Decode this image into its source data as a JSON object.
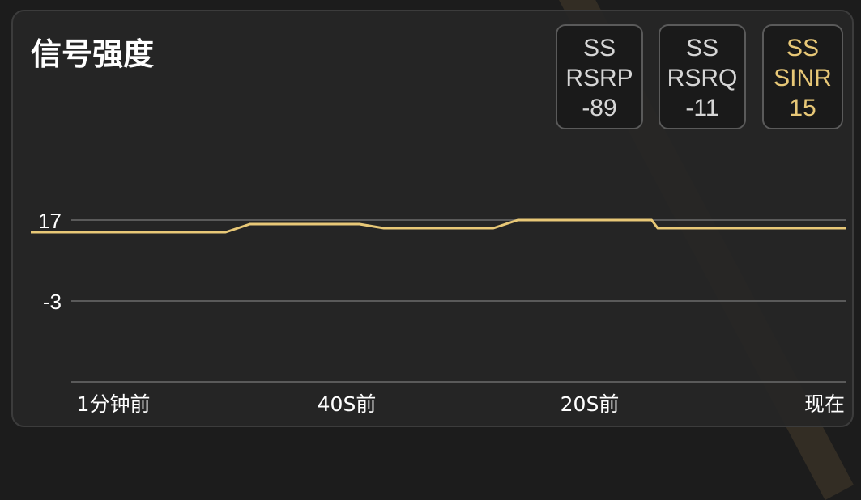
{
  "title": "信号强度",
  "metrics": [
    {
      "line1": "SS",
      "line2": "RSRP",
      "value": "-89",
      "active": false
    },
    {
      "line1": "SS",
      "line2": "RSRQ",
      "value": "-11",
      "active": false
    },
    {
      "line1": "SS",
      "line2": "SINR",
      "value": "15",
      "active": true
    }
  ],
  "colors": {
    "line": "#e8c877",
    "active_text": "#e8c877",
    "grid": "#5a5a5a"
  },
  "chart_data": {
    "type": "line",
    "title": "",
    "xlabel": "",
    "ylabel": "",
    "y_ticks": [
      "17",
      "-3"
    ],
    "y_tick_values": [
      17,
      -3
    ],
    "x_ticks": [
      "1分钟前",
      "40S前",
      "20S前",
      "现在"
    ],
    "x_tick_values": [
      -60,
      -40,
      -20,
      0
    ],
    "xlim": [
      -67,
      0
    ],
    "ylim": [
      -23,
      17
    ],
    "grid": true,
    "series": [
      {
        "x": [
          -67,
          -51,
          -49,
          -40,
          -38,
          -29,
          -27,
          -16,
          -15.5,
          0
        ],
        "y": [
          14,
          14,
          16,
          16,
          15,
          15,
          17,
          17,
          15,
          15
        ]
      }
    ]
  }
}
